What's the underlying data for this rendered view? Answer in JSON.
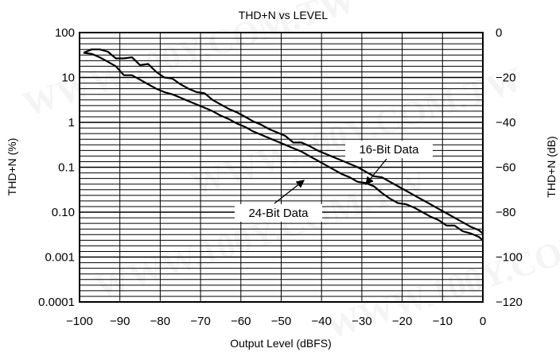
{
  "chart_data": {
    "type": "line",
    "title": "THD+N vs LEVEL",
    "xlabel": "Output Level (dBFS)",
    "ylabel_left": "THD+N (%)",
    "ylabel_right": "THD+N (dB)",
    "xlim": [
      -100,
      0
    ],
    "ylim_db": [
      -120,
      0
    ],
    "x_ticks": [
      "−100",
      "−90",
      "−80",
      "−70",
      "−60",
      "−50",
      "−40",
      "−30",
      "−20",
      "−10",
      "0"
    ],
    "y_left_ticks": [
      "100",
      "10",
      "1",
      "0.1",
      "0.10",
      "0.001",
      "0.0001"
    ],
    "y_right_ticks": [
      "0",
      "−20",
      "−40",
      "−60",
      "−80",
      "−100",
      "−120"
    ],
    "grid": true,
    "series": [
      {
        "name": "16-Bit Data",
        "x": [
          -99,
          -97,
          -95,
          -93,
          -91,
          -89,
          -87,
          -85,
          -83,
          -81,
          -79,
          -77,
          -75,
          -73,
          -71,
          -69,
          -67,
          -65,
          -63,
          -61,
          -59,
          -57,
          -55,
          -53,
          -51,
          -49,
          -47,
          -45,
          -43,
          -41,
          -39,
          -37,
          -35,
          -33,
          -31,
          -29,
          -27,
          -25,
          -23,
          -21,
          -19,
          -17,
          -15,
          -13,
          -11,
          -9,
          -7,
          -5,
          -3,
          -1,
          0
        ],
        "values": [
          -9,
          -7.5,
          -7.5,
          -8.5,
          -11.5,
          -11.5,
          -11,
          -14.5,
          -14,
          -17.5,
          -20,
          -20.5,
          -23,
          -25,
          -26.5,
          -27,
          -30,
          -32,
          -34,
          -35.5,
          -37.5,
          -39.5,
          -41,
          -43,
          -44.5,
          -46,
          -49,
          -49,
          -50.5,
          -52.5,
          -54,
          -55.5,
          -57,
          -58.5,
          -60,
          -62,
          -64,
          -64.5,
          -66.5,
          -68.5,
          -70.5,
          -72.5,
          -74.5,
          -76.5,
          -78.5,
          -80.5,
          -82.5,
          -84.5,
          -86.5,
          -88,
          -89.5
        ]
      },
      {
        "name": "24-Bit Data",
        "x": [
          -99,
          -97,
          -95,
          -93,
          -91,
          -89,
          -87,
          -85,
          -83,
          -81,
          -79,
          -77,
          -75,
          -73,
          -71,
          -69,
          -67,
          -65,
          -63,
          -61,
          -59,
          -57,
          -55,
          -53,
          -51,
          -49,
          -47,
          -45,
          -43,
          -41,
          -39,
          -37,
          -35,
          -33,
          -31,
          -29,
          -27,
          -25,
          -23,
          -21,
          -19,
          -17,
          -15,
          -13,
          -11,
          -9,
          -7,
          -5,
          -3,
          -1,
          0
        ],
        "values": [
          -9,
          -9.5,
          -11,
          -13,
          -15,
          -19,
          -19,
          -21,
          -23,
          -25,
          -26.5,
          -27.5,
          -29,
          -30.5,
          -32,
          -33.5,
          -35,
          -37,
          -38.5,
          -40.5,
          -42,
          -44,
          -45.5,
          -47,
          -48.5,
          -50,
          -51.5,
          -53,
          -55,
          -57,
          -59,
          -61,
          -63,
          -64.5,
          -66.5,
          -67,
          -68.5,
          -71.5,
          -74,
          -76,
          -76.5,
          -78,
          -80,
          -82,
          -83.5,
          -86,
          -86,
          -88.5,
          -89.5,
          -91,
          -92.5
        ]
      }
    ],
    "annotations": [
      {
        "text": "16-Bit Data",
        "points_to_series": "16-Bit Data"
      },
      {
        "text": "24-Bit Data",
        "points_to_series": "24-Bit Data"
      }
    ]
  }
}
